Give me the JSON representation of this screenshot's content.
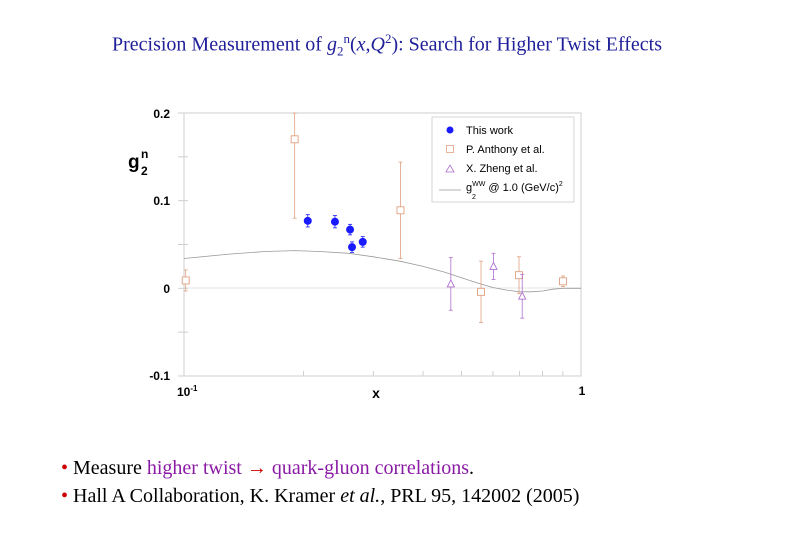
{
  "title": {
    "prefix": "Precision Measurement of ",
    "g": "g",
    "sub": "2",
    "sup": "n",
    "open": "(",
    "x": "x",
    "comma": ",",
    "Q": "Q",
    "Qsup": "2",
    "suffix": "): Search for Higher Twist Effects"
  },
  "chart_data": {
    "type": "scatter",
    "title": "",
    "xlabel": "x",
    "ylabel_main": "g",
    "ylabel_sub": "2",
    "ylabel_sup": "n",
    "xscale": "log",
    "xlim": [
      0.1,
      1
    ],
    "ylim": [
      -0.1,
      0.2
    ],
    "xticks": [
      {
        "v": 0.1,
        "base": "10",
        "exp": "-1"
      },
      {
        "v": 1,
        "label": "1"
      }
    ],
    "yticks": [
      {
        "v": 0.2,
        "label": "0.2"
      },
      {
        "v": 0.1,
        "label": "0.1"
      },
      {
        "v": 0,
        "label": "0"
      },
      {
        "v": -0.1,
        "label": "-0.1"
      }
    ],
    "legend_position": "top-right",
    "series": [
      {
        "name": "This work",
        "marker": "filled-circle",
        "color": "#1a1aff",
        "points": [
          {
            "x": 0.205,
            "y": 0.077,
            "err": 0.007
          },
          {
            "x": 0.24,
            "y": 0.076,
            "err": 0.007
          },
          {
            "x": 0.262,
            "y": 0.067,
            "err": 0.006
          },
          {
            "x": 0.265,
            "y": 0.047,
            "err": 0.006
          },
          {
            "x": 0.282,
            "y": 0.053,
            "err": 0.006
          }
        ]
      },
      {
        "name": "P. Anthony et al.",
        "marker": "open-square",
        "color": "#e0a080",
        "points": [
          {
            "x": 0.101,
            "y": 0.009,
            "err": 0.012
          },
          {
            "x": 0.19,
            "y": 0.17,
            "err": 0.09
          },
          {
            "x": 0.351,
            "y": 0.089,
            "err": 0.055
          },
          {
            "x": 0.56,
            "y": -0.004,
            "err": 0.035
          },
          {
            "x": 0.698,
            "y": 0.015,
            "err": 0.021
          },
          {
            "x": 0.901,
            "y": 0.008,
            "err": 0.006
          }
        ]
      },
      {
        "name": "X. Zheng et al.",
        "marker": "open-triangle",
        "color": "#b070d0",
        "points": [
          {
            "x": 0.47,
            "y": 0.005,
            "err": 0.03
          },
          {
            "x": 0.602,
            "y": 0.025,
            "err": 0.015
          },
          {
            "x": 0.711,
            "y": -0.009,
            "err": 0.025
          }
        ]
      }
    ],
    "curve": {
      "name_main": "g",
      "name_sub": "2",
      "name_sup": "WW",
      "name_suffix": " @ 1.0 (GeV/c)",
      "name_suffix_sup": "2",
      "color": "#9a9a9a",
      "points": [
        [
          0.1,
          0.034
        ],
        [
          0.13,
          0.039
        ],
        [
          0.16,
          0.042
        ],
        [
          0.19,
          0.043
        ],
        [
          0.22,
          0.042
        ],
        [
          0.26,
          0.04
        ],
        [
          0.3,
          0.036
        ],
        [
          0.35,
          0.031
        ],
        [
          0.4,
          0.025
        ],
        [
          0.45,
          0.019
        ],
        [
          0.5,
          0.012
        ],
        [
          0.55,
          0.006
        ],
        [
          0.6,
          0.001
        ],
        [
          0.65,
          -0.002
        ],
        [
          0.7,
          -0.004
        ],
        [
          0.75,
          -0.004
        ],
        [
          0.8,
          -0.003
        ],
        [
          0.85,
          -0.001
        ],
        [
          0.9,
          0.0
        ],
        [
          0.95,
          0.0
        ],
        [
          1.0,
          0.0
        ]
      ]
    }
  },
  "colors": {
    "title": "#1f1f99",
    "bullet_dot": "#cc0000",
    "highlight": "#8a1aa5"
  },
  "bullets": [
    {
      "dot": "•",
      "text1": " Measure ",
      "highlight1": "higher twist",
      "arrow": "→",
      "highlight2": " quark-gluon correlations",
      "text2": "."
    },
    {
      "dot": "•",
      "text1": " Hall A Collaboration, K. Kramer ",
      "italic": "et al.",
      "text2": ",  PRL 95, 142002 (2005)"
    }
  ]
}
